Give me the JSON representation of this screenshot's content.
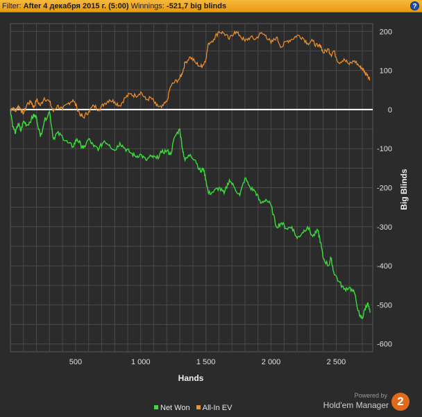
{
  "filter": {
    "label": "Filter:",
    "value": "After 4 декабря 2015 г. (5:00)",
    "winnings_label": "Winnings:",
    "winnings_value": "-521,7 big blinds"
  },
  "help_label": "?",
  "legend": {
    "net_won": "Net Won",
    "all_in_ev": "All-In EV"
  },
  "brand": {
    "powered": "Powered by",
    "name": "Hold'em Manager",
    "logo_text": "2"
  },
  "colors": {
    "net_won": "#3ddc3d",
    "all_in_ev": "#f0922f",
    "zero_line": "#ffffff",
    "grid": "#4a4a4a",
    "background": "#2b2b2b"
  },
  "chart_data": {
    "type": "line",
    "xlabel": "Hands",
    "ylabel": "Big Blinds",
    "xlim": [
      0,
      2780
    ],
    "ylim": [
      -620,
      220
    ],
    "x_ticks": [
      500,
      1000,
      1500,
      2000,
      2500
    ],
    "x_tick_labels": [
      "500",
      "1 000",
      "1 500",
      "2 000",
      "2 500"
    ],
    "y_ticks": [
      200,
      100,
      0,
      -100,
      -200,
      -300,
      -400,
      -500,
      -600
    ],
    "y_tick_labels": [
      "200",
      "100",
      "0",
      "-100",
      "-200",
      "-300",
      "-400",
      "-500",
      "-600"
    ],
    "legend_position": "bottom-center",
    "grid": true,
    "series": [
      {
        "name": "Net Won",
        "x": [
          0,
          20,
          40,
          60,
          80,
          100,
          130,
          160,
          180,
          200,
          230,
          260,
          300,
          330,
          360,
          400,
          440,
          480,
          510,
          540,
          560,
          600,
          640,
          680,
          720,
          760,
          800,
          840,
          880,
          920,
          960,
          1000,
          1040,
          1080,
          1120,
          1160,
          1200,
          1230,
          1260,
          1300,
          1320,
          1340,
          1380,
          1420,
          1460,
          1480,
          1500,
          1520,
          1560,
          1600,
          1640,
          1680,
          1720,
          1760,
          1800,
          1840,
          1880,
          1920,
          1960,
          2000,
          2040,
          2080,
          2120,
          2160,
          2200,
          2240,
          2280,
          2320,
          2360,
          2380,
          2400,
          2440,
          2460,
          2480,
          2520,
          2560,
          2600,
          2640,
          2680,
          2700,
          2720,
          2740,
          2760
        ],
        "y": [
          0,
          -45,
          -60,
          -35,
          -55,
          -30,
          -40,
          -25,
          -15,
          -20,
          -70,
          -30,
          -5,
          -75,
          -60,
          -70,
          -85,
          -95,
          -75,
          -90,
          -100,
          -75,
          -95,
          -100,
          -80,
          -90,
          -105,
          -85,
          -100,
          -110,
          -120,
          -115,
          -130,
          -120,
          -125,
          -110,
          -105,
          -115,
          -70,
          -50,
          -100,
          -130,
          -115,
          -130,
          -160,
          -150,
          -180,
          -215,
          -210,
          -200,
          -215,
          -180,
          -200,
          -220,
          -175,
          -200,
          -210,
          -240,
          -230,
          -245,
          -300,
          -290,
          -305,
          -300,
          -330,
          -315,
          -300,
          -325,
          -310,
          -340,
          -380,
          -400,
          -380,
          -415,
          -440,
          -460,
          -455,
          -470,
          -530,
          -535,
          -510,
          -495,
          -520
        ]
      },
      {
        "name": "All-In EV",
        "x": [
          0,
          20,
          40,
          60,
          80,
          100,
          130,
          160,
          180,
          200,
          230,
          260,
          300,
          330,
          360,
          400,
          440,
          480,
          510,
          540,
          560,
          600,
          640,
          680,
          720,
          760,
          800,
          840,
          880,
          920,
          960,
          1000,
          1040,
          1080,
          1120,
          1160,
          1200,
          1230,
          1260,
          1300,
          1320,
          1340,
          1380,
          1420,
          1460,
          1480,
          1500,
          1520,
          1560,
          1600,
          1640,
          1680,
          1720,
          1760,
          1800,
          1840,
          1880,
          1920,
          1960,
          2000,
          2040,
          2080,
          2120,
          2160,
          2200,
          2240,
          2280,
          2320,
          2360,
          2380,
          2400,
          2440,
          2460,
          2480,
          2520,
          2560,
          2600,
          2640,
          2680,
          2700,
          2720,
          2740,
          2760
        ],
        "y": [
          0,
          5,
          -5,
          10,
          0,
          -10,
          15,
          20,
          5,
          25,
          10,
          30,
          20,
          -5,
          10,
          0,
          15,
          25,
          5,
          -15,
          -20,
          -5,
          10,
          0,
          15,
          25,
          20,
          10,
          30,
          40,
          35,
          45,
          25,
          30,
          10,
          5,
          20,
          60,
          70,
          80,
          95,
          120,
          135,
          120,
          110,
          115,
          130,
          170,
          180,
          200,
          195,
          180,
          200,
          190,
          175,
          185,
          180,
          195,
          190,
          170,
          185,
          160,
          175,
          180,
          190,
          185,
          170,
          175,
          160,
          165,
          145,
          155,
          140,
          150,
          120,
          130,
          115,
          125,
          110,
          105,
          95,
          90,
          75
        ]
      }
    ]
  }
}
